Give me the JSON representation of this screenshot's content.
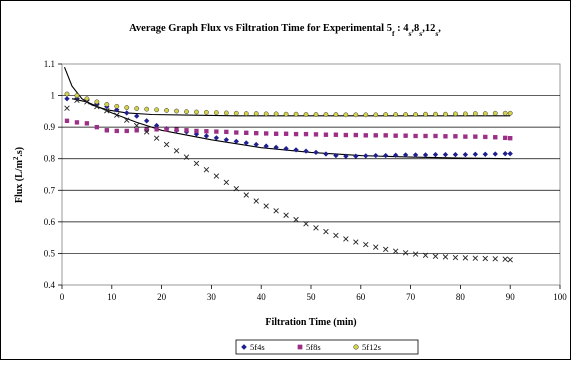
{
  "chart_data": {
    "type": "scatter",
    "title_parts": [
      {
        "text": "Average Graph Flux vs Filtration Time for Experimental 5",
        "sub": false
      },
      {
        "text": "f",
        "sub": true
      },
      {
        "text": " : 4",
        "sub": false
      },
      {
        "text": "s",
        "sub": true
      },
      {
        "text": ",8",
        "sub": false
      },
      {
        "text": "s",
        "sub": true
      },
      {
        "text": ",12",
        "sub": false
      },
      {
        "text": "s",
        "sub": true
      },
      {
        "text": ",",
        "sub": false
      }
    ],
    "xlabel": "Filtration Time (min)",
    "ylabel_parts": [
      {
        "text": "Flux (L/m",
        "sup": false
      },
      {
        "text": "2",
        "sup": true
      },
      {
        "text": ".s)",
        "sup": false
      }
    ],
    "xlim": [
      0,
      100
    ],
    "ylim": [
      0.4,
      1.1
    ],
    "xticks": [
      "0",
      "10",
      "20",
      "30",
      "40",
      "50",
      "60",
      "70",
      "80",
      "90",
      "100"
    ],
    "yticks": [
      "0.4",
      "0.5",
      "0.6",
      "0.7",
      "0.8",
      "0.9",
      "1",
      "1.1"
    ],
    "grid": "horizontal",
    "legend_position": "bottom",
    "x": [
      1,
      3,
      5,
      7,
      9,
      11,
      13,
      15,
      17,
      19,
      21,
      23,
      25,
      27,
      29,
      31,
      33,
      35,
      37,
      39,
      41,
      43,
      45,
      47,
      49,
      51,
      53,
      55,
      57,
      59,
      61,
      63,
      65,
      67,
      69,
      71,
      73,
      75,
      77,
      79,
      81,
      83,
      85,
      87,
      89,
      90
    ],
    "series": [
      {
        "name": "5f4s",
        "marker": "diamond",
        "color": "#1f1f8f",
        "values": [
          0.99,
          0.99,
          0.985,
          0.975,
          0.965,
          0.955,
          0.945,
          0.935,
          0.92,
          0.905,
          0.895,
          0.89,
          0.885,
          0.878,
          0.872,
          0.866,
          0.86,
          0.855,
          0.85,
          0.845,
          0.84,
          0.836,
          0.832,
          0.828,
          0.824,
          0.82,
          0.815,
          0.81,
          0.808,
          0.808,
          0.809,
          0.81,
          0.81,
          0.811,
          0.812,
          0.812,
          0.812,
          0.813,
          0.813,
          0.813,
          0.813,
          0.814,
          0.814,
          0.815,
          0.816,
          0.816
        ]
      },
      {
        "name": "5f8s",
        "marker": "square",
        "color": "#9b2f86",
        "values": [
          0.92,
          0.915,
          0.912,
          0.9,
          0.89,
          0.888,
          0.888,
          0.89,
          0.892,
          0.893,
          0.893,
          0.892,
          0.89,
          0.888,
          0.887,
          0.886,
          0.885,
          0.883,
          0.882,
          0.881,
          0.88,
          0.879,
          0.879,
          0.878,
          0.878,
          0.877,
          0.876,
          0.876,
          0.875,
          0.875,
          0.874,
          0.874,
          0.874,
          0.873,
          0.873,
          0.872,
          0.872,
          0.872,
          0.871,
          0.871,
          0.87,
          0.87,
          0.869,
          0.868,
          0.866,
          0.865
        ]
      },
      {
        "name": "5f12s",
        "marker": "circle",
        "color": "#d4d24a",
        "values": [
          1.005,
          1.0,
          0.99,
          0.98,
          0.972,
          0.966,
          0.962,
          0.959,
          0.957,
          0.955,
          0.953,
          0.951,
          0.949,
          0.948,
          0.947,
          0.946,
          0.945,
          0.944,
          0.943,
          0.943,
          0.942,
          0.942,
          0.941,
          0.941,
          0.94,
          0.94,
          0.94,
          0.94,
          0.939,
          0.939,
          0.939,
          0.939,
          0.94,
          0.94,
          0.94,
          0.94,
          0.941,
          0.941,
          0.941,
          0.942,
          0.942,
          0.943,
          0.943,
          0.944,
          0.944,
          0.944
        ]
      },
      {
        "name": "",
        "marker": "cross",
        "color": "#222222",
        "values": [
          0.96,
          0.985,
          0.98,
          0.965,
          0.952,
          0.938,
          0.922,
          0.905,
          0.885,
          0.865,
          0.845,
          0.825,
          0.805,
          0.785,
          0.765,
          0.745,
          0.725,
          0.705,
          0.685,
          0.666,
          0.65,
          0.635,
          0.621,
          0.607,
          0.594,
          0.581,
          0.569,
          0.557,
          0.546,
          0.536,
          0.528,
          0.52,
          0.513,
          0.507,
          0.502,
          0.498,
          0.494,
          0.491,
          0.489,
          0.487,
          0.486,
          0.485,
          0.484,
          0.483,
          0.482,
          0.48
        ]
      }
    ],
    "fit_curves": [
      {
        "x": [
          0.5,
          2,
          4,
          6,
          9,
          13,
          18,
          25,
          35,
          50,
          70,
          90
        ],
        "values": [
          1.09,
          1.03,
          0.99,
          0.97,
          0.955,
          0.945,
          0.94,
          0.938,
          0.936,
          0.936,
          0.936,
          0.936
        ]
      },
      {
        "x": [
          2,
          5,
          10,
          15,
          20,
          30,
          40,
          50,
          60,
          70,
          80,
          90
        ],
        "values": [
          0.99,
          0.98,
          0.945,
          0.915,
          0.89,
          0.86,
          0.835,
          0.82,
          0.81,
          0.805,
          0.802,
          0.8
        ]
      }
    ]
  }
}
